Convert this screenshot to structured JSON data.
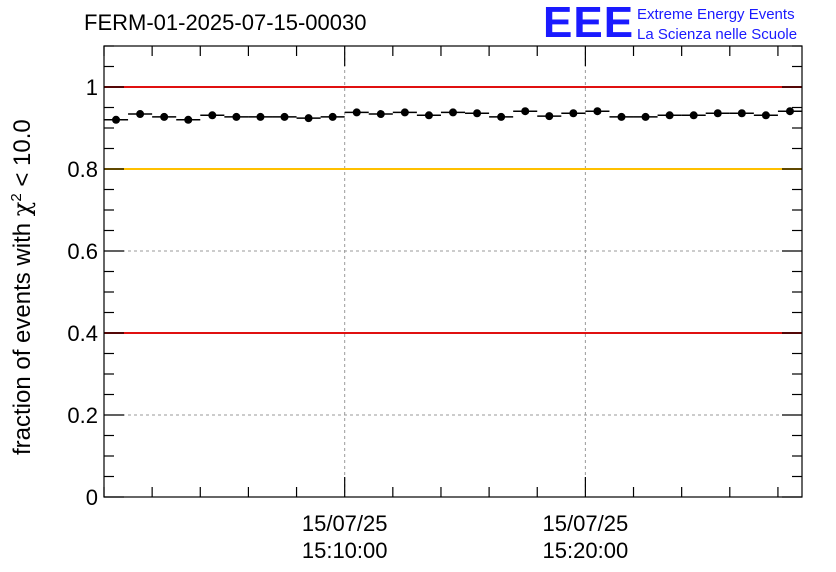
{
  "header": {
    "title": "FERM-01-2025-07-15-00030"
  },
  "logo": {
    "mark": "EEE",
    "line1": "Extreme Energy Events",
    "line2": "La Scienza nelle Scuole",
    "color": "#1a1aff"
  },
  "chart_data": {
    "type": "scatter",
    "ylabel_prefix": "fraction of events with ",
    "ylabel_symbol": "χ",
    "ylabel_sup": "2",
    "ylabel_suffix": " < 10.0",
    "ylim": [
      0,
      1.1
    ],
    "yticks": [
      {
        "value": 0,
        "label": "0"
      },
      {
        "value": 0.2,
        "label": "0.2"
      },
      {
        "value": 0.4,
        "label": "0.4"
      },
      {
        "value": 0.6,
        "label": "0.6"
      },
      {
        "value": 0.8,
        "label": "0.8"
      },
      {
        "value": 1,
        "label": "1"
      }
    ],
    "xlim_minutes": [
      0,
      29
    ],
    "xticks": [
      {
        "minute": 10,
        "date": "15/07/25",
        "time": "15:10:00"
      },
      {
        "minute": 20,
        "date": "15/07/25",
        "time": "15:20:00"
      }
    ],
    "grid": true,
    "reference_lines": [
      {
        "y": 1.0,
        "color": "#e01010"
      },
      {
        "y": 0.8,
        "color": "#ffc000"
      },
      {
        "y": 0.4,
        "color": "#e01010"
      }
    ],
    "points": [
      {
        "x": 0.5,
        "y": 0.92
      },
      {
        "x": 1.5,
        "y": 0.934
      },
      {
        "x": 2.5,
        "y": 0.927
      },
      {
        "x": 3.5,
        "y": 0.92
      },
      {
        "x": 4.5,
        "y": 0.931
      },
      {
        "x": 5.5,
        "y": 0.927
      },
      {
        "x": 6.5,
        "y": 0.927
      },
      {
        "x": 7.5,
        "y": 0.927
      },
      {
        "x": 8.5,
        "y": 0.924
      },
      {
        "x": 9.5,
        "y": 0.927
      },
      {
        "x": 10.5,
        "y": 0.938
      },
      {
        "x": 11.5,
        "y": 0.934
      },
      {
        "x": 12.5,
        "y": 0.938
      },
      {
        "x": 13.5,
        "y": 0.931
      },
      {
        "x": 14.5,
        "y": 0.938
      },
      {
        "x": 15.5,
        "y": 0.936
      },
      {
        "x": 16.5,
        "y": 0.927
      },
      {
        "x": 17.5,
        "y": 0.941
      },
      {
        "x": 18.5,
        "y": 0.929
      },
      {
        "x": 19.5,
        "y": 0.936
      },
      {
        "x": 20.5,
        "y": 0.941
      },
      {
        "x": 21.5,
        "y": 0.927
      },
      {
        "x": 22.5,
        "y": 0.927
      },
      {
        "x": 23.5,
        "y": 0.931
      },
      {
        "x": 24.5,
        "y": 0.931
      },
      {
        "x": 25.5,
        "y": 0.936
      },
      {
        "x": 26.5,
        "y": 0.936
      },
      {
        "x": 27.5,
        "y": 0.931
      },
      {
        "x": 28.5,
        "y": 0.941
      }
    ]
  }
}
